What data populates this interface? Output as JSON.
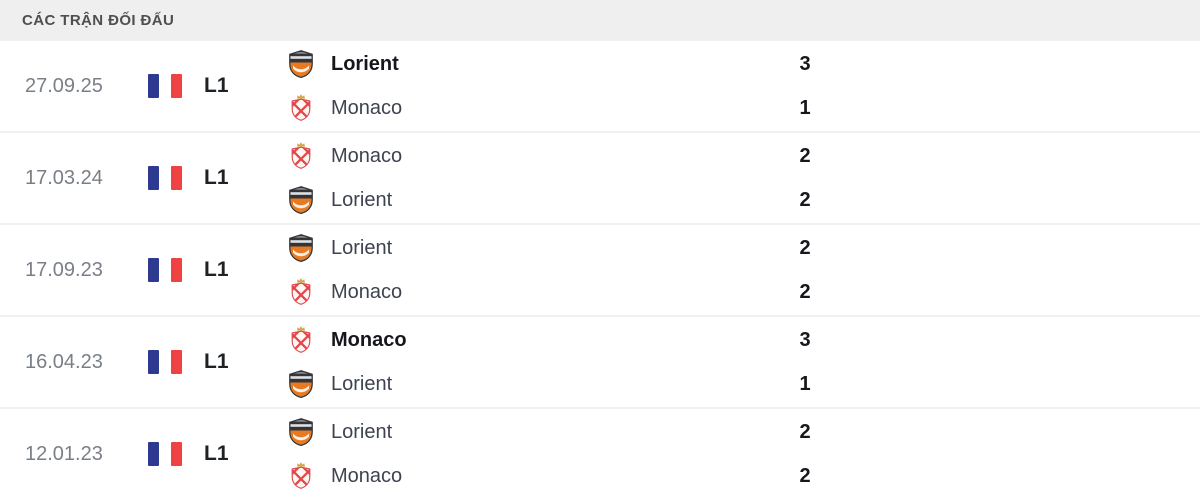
{
  "header": {
    "title": "CÁC TRẬN ĐỐI ĐẤU"
  },
  "colors": {
    "header_bg": "#efefef",
    "header_text": "#4f4f4f",
    "date_text": "#7a7f87",
    "divider": "#f0f1f2",
    "flag_blue": "#2d3a8f",
    "flag_red": "#ef4343",
    "lorient_orange": "#e87b22",
    "lorient_dark": "#343539",
    "monaco_red": "#e2484d",
    "monaco_gold": "#d4a63f"
  },
  "matches": [
    {
      "date": "27.09.25",
      "league": "L1",
      "home": {
        "team": "Lorient",
        "score": "3",
        "bold": true
      },
      "away": {
        "team": "Monaco",
        "score": "1",
        "bold": false
      }
    },
    {
      "date": "17.03.24",
      "league": "L1",
      "home": {
        "team": "Monaco",
        "score": "2",
        "bold": false
      },
      "away": {
        "team": "Lorient",
        "score": "2",
        "bold": false
      }
    },
    {
      "date": "17.09.23",
      "league": "L1",
      "home": {
        "team": "Lorient",
        "score": "2",
        "bold": false
      },
      "away": {
        "team": "Monaco",
        "score": "2",
        "bold": false
      }
    },
    {
      "date": "16.04.23",
      "league": "L1",
      "home": {
        "team": "Monaco",
        "score": "3",
        "bold": true
      },
      "away": {
        "team": "Lorient",
        "score": "1",
        "bold": false
      }
    },
    {
      "date": "12.01.23",
      "league": "L1",
      "home": {
        "team": "Lorient",
        "score": "2",
        "bold": false
      },
      "away": {
        "team": "Monaco",
        "score": "2",
        "bold": false
      }
    }
  ]
}
